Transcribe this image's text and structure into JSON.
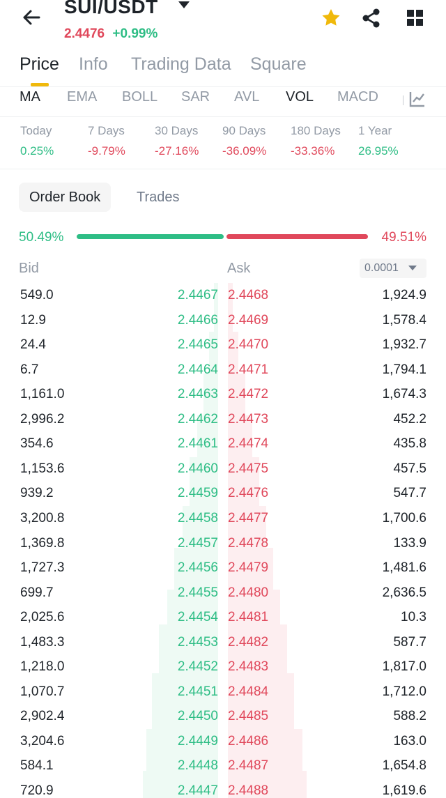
{
  "header": {
    "pair": "SUI/USDT",
    "last_price": "2.4476",
    "change": "+0.99%"
  },
  "tabs": [
    "Price",
    "Info",
    "Trading Data",
    "Square"
  ],
  "indicators": [
    "MA",
    "EMA",
    "BOLL",
    "SAR",
    "AVL",
    "VOL",
    "MACD"
  ],
  "performance": [
    {
      "label": "Today",
      "value": "0.25%"
    },
    {
      "label": "7 Days",
      "value": "-9.79%"
    },
    {
      "label": "30 Days",
      "value": "-27.16%"
    },
    {
      "label": "90 Days",
      "value": "-36.09%"
    },
    {
      "label": "180 Days",
      "value": "-33.36%"
    },
    {
      "label": "1 Year",
      "value": "26.95%"
    }
  ],
  "orderbook_tabs": [
    "Order Book",
    "Trades"
  ],
  "ratio": {
    "bid": "50.49%",
    "ask": "49.51%",
    "bid_fraction": 0.5049
  },
  "columns": {
    "bid": "Bid",
    "ask": "Ask",
    "precision": "0.0001"
  },
  "rows": [
    {
      "bid_qty": "549.0",
      "bid_price": "2.4467",
      "ask_price": "2.4468",
      "ask_qty": "1,924.9"
    },
    {
      "bid_qty": "12.9",
      "bid_price": "2.4466",
      "ask_price": "2.4469",
      "ask_qty": "1,578.4"
    },
    {
      "bid_qty": "24.4",
      "bid_price": "2.4465",
      "ask_price": "2.4470",
      "ask_qty": "1,932.7"
    },
    {
      "bid_qty": "6.7",
      "bid_price": "2.4464",
      "ask_price": "2.4471",
      "ask_qty": "1,794.1"
    },
    {
      "bid_qty": "1,161.0",
      "bid_price": "2.4463",
      "ask_price": "2.4472",
      "ask_qty": "1,674.3"
    },
    {
      "bid_qty": "2,996.2",
      "bid_price": "2.4462",
      "ask_price": "2.4473",
      "ask_qty": "452.2"
    },
    {
      "bid_qty": "354.6",
      "bid_price": "2.4461",
      "ask_price": "2.4474",
      "ask_qty": "435.8"
    },
    {
      "bid_qty": "1,153.6",
      "bid_price": "2.4460",
      "ask_price": "2.4475",
      "ask_qty": "457.5"
    },
    {
      "bid_qty": "939.2",
      "bid_price": "2.4459",
      "ask_price": "2.4476",
      "ask_qty": "547.7"
    },
    {
      "bid_qty": "3,200.8",
      "bid_price": "2.4458",
      "ask_price": "2.4477",
      "ask_qty": "1,700.6"
    },
    {
      "bid_qty": "1,369.8",
      "bid_price": "2.4457",
      "ask_price": "2.4478",
      "ask_qty": "133.9"
    },
    {
      "bid_qty": "1,727.3",
      "bid_price": "2.4456",
      "ask_price": "2.4479",
      "ask_qty": "1,481.6"
    },
    {
      "bid_qty": "699.7",
      "bid_price": "2.4455",
      "ask_price": "2.4480",
      "ask_qty": "2,636.5"
    },
    {
      "bid_qty": "2,025.6",
      "bid_price": "2.4454",
      "ask_price": "2.4481",
      "ask_qty": "10.3"
    },
    {
      "bid_qty": "1,483.3",
      "bid_price": "2.4453",
      "ask_price": "2.4482",
      "ask_qty": "587.7"
    },
    {
      "bid_qty": "1,218.0",
      "bid_price": "2.4452",
      "ask_price": "2.4483",
      "ask_qty": "1,817.0"
    },
    {
      "bid_qty": "1,070.7",
      "bid_price": "2.4451",
      "ask_price": "2.4484",
      "ask_qty": "1,712.0"
    },
    {
      "bid_qty": "2,902.4",
      "bid_price": "2.4450",
      "ask_price": "2.4485",
      "ask_qty": "588.2"
    },
    {
      "bid_qty": "3,204.6",
      "bid_price": "2.4449",
      "ask_price": "2.4486",
      "ask_qty": "163.0"
    },
    {
      "bid_qty": "584.1",
      "bid_price": "2.4448",
      "ask_price": "2.4487",
      "ask_qty": "1,654.8"
    },
    {
      "bid_qty": "720.9",
      "bid_price": "2.4447",
      "ask_price": "2.4488",
      "ask_qty": "1,619.6"
    }
  ],
  "colors": {
    "accent": "#f0b90b",
    "buy": "#2ebd85",
    "sell": "#e0485b"
  },
  "icons": [
    "back-arrow-icon",
    "caret-down-icon",
    "star-icon",
    "share-icon",
    "grid-menu-icon",
    "chart-settings-icon"
  ]
}
